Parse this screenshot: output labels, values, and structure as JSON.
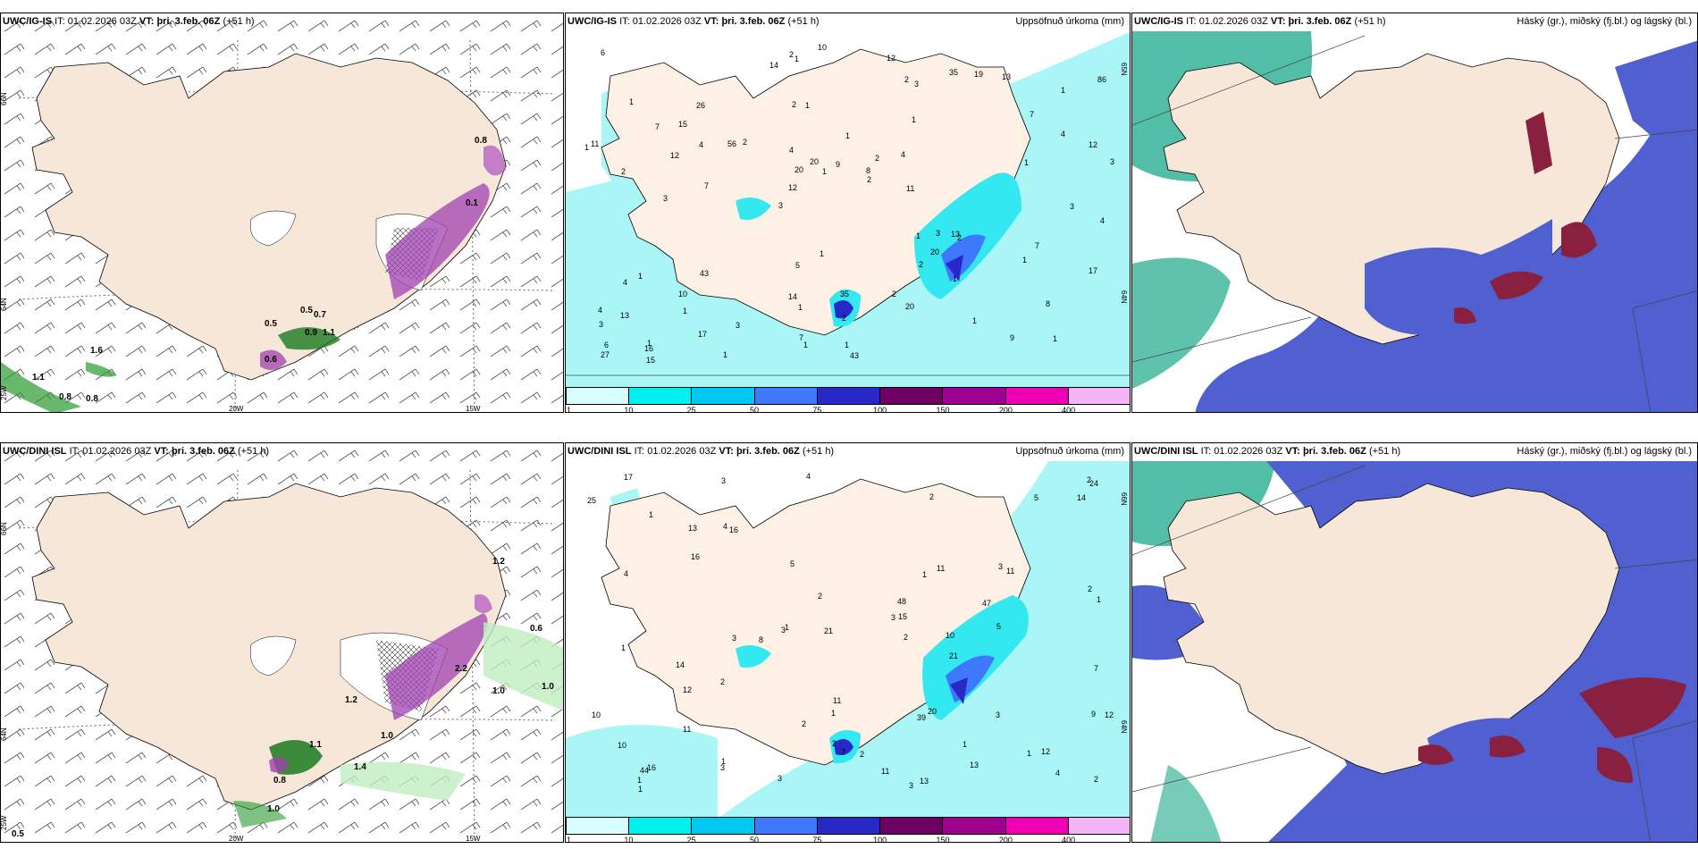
{
  "panels": [
    {
      "id": "top-left",
      "model": "UWC/IG-IS",
      "it_label": "IT:",
      "it_value": "01.02.2026 03Z",
      "vt_label": "VT:",
      "vt_value": "þri. 3.feb. 06Z",
      "lead": "(+51 h)",
      "right_title": "",
      "lat_labels": [
        "66N",
        "64N",
        "25W"
      ],
      "lon_labels": [
        "20W",
        "15W"
      ],
      "values": [
        "0.8",
        "0.1",
        "0.5",
        "0.7",
        "0.9",
        "1.1",
        "0.5",
        "1.6",
        "1.1",
        "0.8",
        "0.8",
        "0.6"
      ]
    },
    {
      "id": "top-middle",
      "model": "UWC/IG-IS",
      "it_label": "IT:",
      "it_value": "01.02.2026 03Z",
      "vt_label": "VT:",
      "vt_value": "þri. 3.feb. 06Z",
      "lead": "(+51 h)",
      "right_title": "Uppsöfnuð úrkoma (mm)",
      "lat_labels": [
        "65N",
        "64N"
      ],
      "lon_labels": [],
      "values": [
        "1",
        "2",
        "1",
        "3",
        "1",
        "1",
        "2",
        "1",
        "1",
        "2",
        "3",
        "1",
        "1",
        "2",
        "2",
        "1",
        "1",
        "3",
        "1",
        "4",
        "12",
        "14",
        "20",
        "26",
        "35",
        "43",
        "9",
        "8",
        "13",
        "43",
        "56",
        "12",
        "2",
        "17",
        "12",
        "8",
        "6",
        "1",
        "2",
        "4",
        "7",
        "86",
        "20",
        "20",
        "10",
        "15",
        "27",
        "35",
        "13",
        "10",
        "7",
        "11",
        "15",
        "19",
        "16",
        "12",
        "14",
        "20",
        "17",
        "5",
        "3",
        "3",
        "4",
        "4",
        "6",
        "7",
        "4",
        "4",
        "2",
        "9",
        "13",
        "11",
        "7",
        "7",
        "1",
        "1",
        "1",
        "1",
        "2",
        "2",
        "3",
        "4",
        "1",
        "1",
        "1",
        "1",
        "1",
        "2",
        "3",
        "3",
        "1"
      ]
    },
    {
      "id": "top-right",
      "model": "UWC/IG-IS",
      "it_label": "IT:",
      "it_value": "01.02.2026 03Z",
      "vt_label": "VT:",
      "vt_value": "þri. 3.feb. 06Z",
      "lead": "(+51 h)",
      "right_title": "Háský (gr.), miðský (fj.bl.) og lágský (bl.)",
      "lat_labels": [],
      "lon_labels": [],
      "values": []
    },
    {
      "id": "bottom-left",
      "model": "UWC/DINI ISL",
      "it_label": "IT:",
      "it_value": "01.02.2026 03Z",
      "vt_label": "VT:",
      "vt_value": "þri. 3.feb. 06Z",
      "lead": "(+51 h)",
      "right_title": "",
      "lat_labels": [
        "66N",
        "64N",
        "25W"
      ],
      "lon_labels": [
        "20W",
        "15W"
      ],
      "values": [
        "1.2",
        "0.6",
        "1.0",
        "1.0",
        "2.2",
        "1.2",
        "1.0",
        "1.1",
        "1.4",
        "1.0",
        "0.5",
        "0.8"
      ]
    },
    {
      "id": "bottom-middle",
      "model": "UWC/DINI ISL",
      "it_label": "IT:",
      "it_value": "01.02.2026 03Z",
      "vt_label": "VT:",
      "vt_value": "þri. 3.feb. 06Z",
      "lead": "(+51 h)",
      "right_title": "Uppsöfnuð úrkoma (mm)",
      "lat_labels": [
        "66N",
        "64N"
      ],
      "lon_labels": [],
      "values": [
        "3",
        "3",
        "1",
        "1",
        "3",
        "1",
        "3",
        "4",
        "4",
        "5",
        "5",
        "7",
        "1",
        "1",
        "2",
        "3",
        "4",
        "3",
        "8",
        "25",
        "39",
        "24",
        "48",
        "44",
        "11",
        "14",
        "10",
        "12",
        "17",
        "21",
        "21",
        "13",
        "11",
        "14",
        "11",
        "10",
        "9",
        "10",
        "11",
        "12",
        "15",
        "47",
        "12",
        "16",
        "16",
        "20",
        "7",
        "11",
        "13",
        "2",
        "2",
        "2",
        "2",
        "3",
        "2",
        "3",
        "3",
        "2",
        "4",
        "1",
        "1",
        "13",
        "16",
        "5",
        "2",
        "1",
        "2",
        "1",
        "1",
        "1",
        "2"
      ]
    }
  ],
  "colorbar": {
    "ticks": [
      "1",
      "10",
      "25",
      "50",
      "75",
      "100",
      "150",
      "200",
      "400"
    ],
    "colors": [
      "#d8ffff",
      "#00f0f0",
      "#00c8f0",
      "#3e78ff",
      "#2828c8",
      "#6e0063",
      "#a00090",
      "#f000b4",
      "#f5b4f5"
    ]
  },
  "colors": {
    "land": "#f6e7d8",
    "land_light": "#fdf0e4",
    "precip_light": "#aaf6f6",
    "precip_mid": "#33e8f0",
    "cloud_high": "#1aa88a",
    "cloud_mid": "#5060d0",
    "cloud_low": "#8a2040"
  }
}
